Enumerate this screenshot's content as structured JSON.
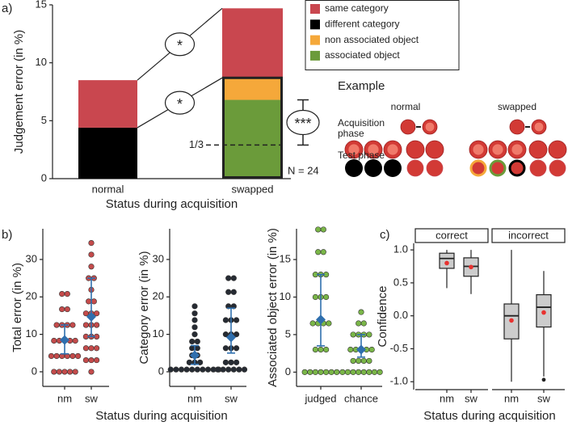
{
  "chart_data": [
    {
      "type": "stacked_bar",
      "panel_label": "a)",
      "ylabel": "Judgement error (in %)",
      "xlabel": "Status during acquisition",
      "categories": [
        "normal",
        "swapped"
      ],
      "series": [
        {
          "name": "same category",
          "color": "#c9474f",
          "values": [
            4.1,
            6.0
          ]
        },
        {
          "name": "different category",
          "color": "#000000",
          "values": [
            4.4,
            null
          ]
        },
        {
          "name": "non associated object",
          "color": "#f5a83a",
          "values": [
            null,
            1.9
          ]
        },
        {
          "name": "associated object",
          "color": "#6b9b3a",
          "values": [
            null,
            6.8
          ]
        }
      ],
      "ylim": [
        0,
        15
      ],
      "yticks": [
        0,
        5,
        10,
        15
      ],
      "significance": [
        "*",
        "*"
      ],
      "chance_line": {
        "label": "1/3",
        "value": 2.9
      },
      "comparison": {
        "text": "***",
        "low": 2.9,
        "high": 6.8
      },
      "note": "N = 24"
    },
    {
      "type": "dot_plot",
      "panel_label": "b)",
      "ylabel": "Total error (in %)",
      "xlabel": "Status during acquisition",
      "categories": [
        "nm",
        "sw"
      ],
      "color": "#c44b4b",
      "mean_color": "#2f6fae",
      "values": [
        [
          20.8,
          20.8,
          16.7,
          16.7,
          12.5,
          12.5,
          12.5,
          12.5,
          8.3,
          8.3,
          8.3,
          8.3,
          8.3,
          4.2,
          4.2,
          4.2,
          4.2,
          4.2,
          4.2,
          0,
          0,
          0,
          0,
          0
        ],
        [
          34.4,
          31.3,
          28.1,
          25,
          25,
          21.9,
          18.8,
          18.8,
          15.6,
          15.6,
          15.6,
          12.5,
          12.5,
          12.5,
          9.4,
          9.4,
          9.4,
          6.3,
          6.3,
          6.3,
          3.1,
          3.1,
          3.1,
          0
        ]
      ],
      "means": [
        8.5,
        14.7
      ],
      "ci": [
        [
          4.8,
          12.5
        ],
        [
          9.4,
          25
        ]
      ],
      "ylim": [
        -3.9,
        38.2
      ],
      "yticks": [
        0,
        10,
        20,
        30
      ]
    },
    {
      "type": "dot_plot",
      "ylabel": "Category error (in %)",
      "categories": [
        "nm",
        "sw"
      ],
      "color": "#262b33",
      "mean_color": "#2f6fae",
      "values": [
        [
          17.5,
          15.6,
          13.8,
          11.9,
          10,
          8.1,
          8.1,
          6.3,
          6.3,
          4.4,
          4.4,
          2.5,
          2.5,
          2.5,
          0.6,
          0.6,
          0.6,
          0.6,
          0.6,
          0.6,
          0.6,
          0.6,
          0.6,
          0.6
        ],
        [
          25,
          25,
          21.3,
          21.3,
          17.5,
          17.5,
          13.8,
          13.8,
          13.8,
          10,
          10,
          10,
          6.3,
          6.3,
          6.3,
          2.5,
          2.5,
          2.5,
          0.6,
          0.6,
          0.6,
          0.6,
          0.6,
          0.6
        ]
      ],
      "means": [
        4.4,
        9.2
      ],
      "ci": [
        [
          2,
          7
        ],
        [
          5,
          17
        ]
      ],
      "ylim": [
        -3.9,
        38.2
      ],
      "yticks": [
        0,
        10,
        20,
        30
      ]
    },
    {
      "type": "dot_plot",
      "ylabel": "Associated object error (in %)",
      "categories": [
        "judged",
        "chance"
      ],
      "color": "#7ab648",
      "mean_color": "#2f6fae",
      "values": [
        [
          19,
          19,
          16,
          16,
          13,
          13,
          13,
          10,
          10,
          10,
          6.5,
          6.5,
          6.5,
          6.5,
          3,
          3,
          3,
          0,
          0,
          0,
          0,
          0,
          0,
          0
        ],
        [
          8,
          6.5,
          6.5,
          5,
          5,
          5,
          5,
          3,
          3,
          3,
          3,
          3,
          1.5,
          1.5,
          1.5,
          1.5,
          0,
          0,
          0,
          0,
          0,
          0,
          0,
          0
        ]
      ],
      "means": [
        7,
        3
      ],
      "ci": [
        [
          3.5,
          13
        ],
        [
          2,
          5
        ]
      ],
      "ylim": [
        -1.9,
        19.1
      ],
      "yticks": [
        0,
        5,
        10,
        15
      ]
    },
    {
      "type": "box",
      "panel_label": "c)",
      "ylabel": "Confidence",
      "xlabel": "Status during acquisition",
      "box_color": "#cccccc",
      "mean_color": "#e8312f",
      "facets": [
        {
          "name": "correct",
          "categories": [
            "nm",
            "sw"
          ],
          "boxes": [
            {
              "whisker_low": 0.42,
              "q1": 0.72,
              "median": 0.87,
              "q3": 0.95,
              "whisker_high": 1.0,
              "mean": 0.8
            },
            {
              "whisker_low": 0.33,
              "q1": 0.6,
              "median": 0.75,
              "q3": 0.88,
              "whisker_high": 1.0,
              "mean": 0.74
            }
          ]
        },
        {
          "name": "incorrect",
          "categories": [
            "nm",
            "sw"
          ],
          "boxes": [
            {
              "whisker_low": -1.0,
              "q1": -0.35,
              "median": 0.0,
              "q3": 0.18,
              "whisker_high": 1.0,
              "mean": -0.07
            },
            {
              "whisker_low": -0.92,
              "q1": -0.17,
              "median": 0.13,
              "q3": 0.32,
              "whisker_high": 0.68,
              "mean": 0.05,
              "outliers": [
                -0.97
              ]
            }
          ]
        }
      ],
      "ylim": [
        -1.12,
        1.1
      ],
      "yticks": [
        {
          "value": -1,
          "label": "-1.0"
        },
        {
          "value": -0.5,
          "label": "-0.5"
        },
        {
          "value": 0,
          "label": "0.0"
        },
        {
          "value": 0.5,
          "label": "0.5"
        },
        {
          "value": 1,
          "label": "1.0"
        }
      ]
    }
  ],
  "example": {
    "title": "Example",
    "columns": [
      "normal",
      "swapped"
    ],
    "rows": [
      "Acquisition phase",
      "Test phase"
    ]
  }
}
